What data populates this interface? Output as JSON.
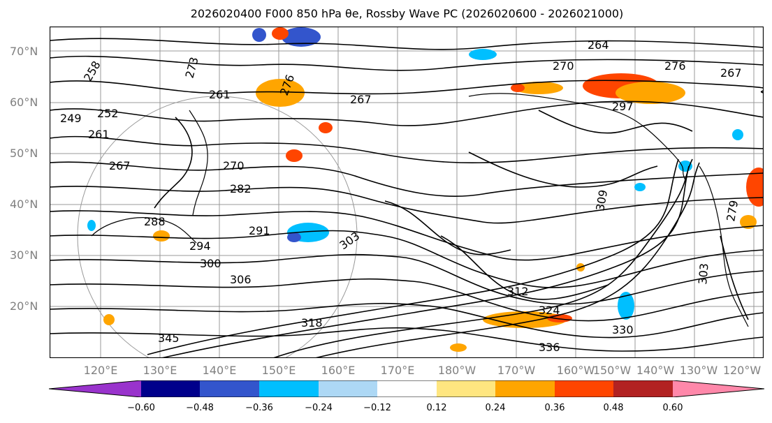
{
  "title": "2026020400 F000 850 hPa θe, Rossby Wave PC (2026020600 - 2026021000)",
  "map": {
    "lat_labels": [
      "70°N",
      "60°N",
      "50°N",
      "40°N",
      "30°N",
      "20°N"
    ],
    "lon_labels": [
      "120°E",
      "130°E",
      "140°E",
      "150°E",
      "160°E",
      "170°E",
      "180°W",
      "170°W",
      "160°W",
      "150°W",
      "140°W",
      "130°W",
      "120°W"
    ],
    "contour_labels": [
      "258",
      "273",
      "261",
      "264",
      "270",
      "276",
      "267",
      "249",
      "252",
      "261",
      "267",
      "270",
      "282",
      "276",
      "288",
      "291",
      "294",
      "300",
      "303",
      "306",
      "312",
      "324",
      "330",
      "336",
      "345",
      "318",
      "297",
      "309",
      "303",
      "267",
      "279"
    ],
    "coastline_color": "#000000",
    "gridline_color": "#999999"
  },
  "colorbar": {
    "ticks": [
      "−0.60",
      "−0.48",
      "−0.36",
      "−0.24",
      "−0.12",
      "0.12",
      "0.24",
      "0.36",
      "0.48",
      "0.60"
    ],
    "colors": [
      "#9933cc",
      "#00008b",
      "#3355cc",
      "#00bfff",
      "#add8f5",
      "#ffffff",
      "#ffe680",
      "#ffa500",
      "#ff4500",
      "#b22222",
      "#ff88aa",
      "#ff88cc"
    ]
  }
}
